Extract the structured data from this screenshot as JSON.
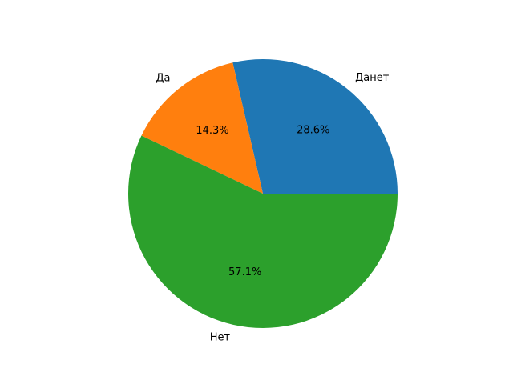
{
  "chart_data": {
    "type": "pie",
    "categories": [
      "Данет",
      "Да",
      "Нет"
    ],
    "values": [
      28.6,
      14.3,
      57.1
    ],
    "labels": [
      "28.6%",
      "14.3%",
      "57.1%"
    ],
    "colors": [
      "#1f77b4",
      "#ff7f0e",
      "#2ca02c"
    ],
    "start_angle": 0,
    "direction": "counterclockwise",
    "legend": "none"
  }
}
